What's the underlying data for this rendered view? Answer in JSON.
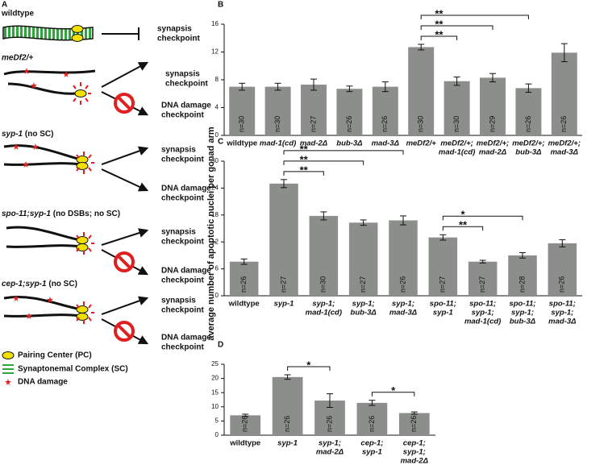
{
  "panel_a": {
    "label": "A",
    "rows": [
      {
        "genotype": "wildtype",
        "checkpoints": [
          [
            "synapsis",
            "checkpoint"
          ]
        ]
      },
      {
        "genotype": "meDf2/+",
        "checkpoints": [
          [
            "synapsis",
            "checkpoint"
          ],
          [
            "DNA damage",
            "checkpoint"
          ]
        ]
      },
      {
        "genotype": "syp-1",
        "note": "(no SC)",
        "checkpoints": [
          [
            "synapsis",
            "checkpoint"
          ],
          [
            "DNA damage",
            "checkpoint"
          ]
        ]
      },
      {
        "genotype": "spo-11;syp-1",
        "note": "(no DSBs; no SC)",
        "checkpoints": [
          [
            "synapsis",
            "checkpoint"
          ],
          [
            "DNA damage",
            "checkpoint"
          ]
        ]
      },
      {
        "genotype": "cep-1;syp-1",
        "note": "(no SC)",
        "checkpoints": [
          [
            "synapsis",
            "checkpoint"
          ],
          [
            "DNA damage",
            "checkpoint"
          ]
        ]
      }
    ],
    "legend": [
      "Pairing Center (PC)",
      "Synaptonemal Complex (SC)",
      "DNA damage"
    ]
  },
  "y_axis_label": "average number of apoptotic nuclei per gonad arm",
  "chart_data": [
    {
      "type": "bar",
      "panel": "B",
      "color": "#8b8e8b",
      "categories": [
        [
          "wildtype"
        ],
        [
          "mad-1(cd)"
        ],
        [
          "mad-2Δ"
        ],
        [
          "bub-3Δ"
        ],
        [
          "mad-3Δ"
        ],
        [
          "meDf2/+"
        ],
        [
          "meDf2/+;",
          "mad-1(cd)"
        ],
        [
          "meDf2/+;",
          "mad-2Δ"
        ],
        [
          "meDf2/+;",
          "bub-3Δ"
        ],
        [
          "meDf2/+;",
          "mad-3Δ"
        ]
      ],
      "values": [
        7.0,
        7.0,
        7.3,
        6.7,
        7.0,
        12.7,
        7.8,
        8.3,
        6.8,
        11.9
      ],
      "errors": [
        0.5,
        0.5,
        0.8,
        0.4,
        0.7,
        0.4,
        0.6,
        0.6,
        0.6,
        1.3
      ],
      "n_labels": [
        "n=30",
        "n=30",
        "n=27",
        "n=26",
        "n=26",
        "n=30",
        "n=30",
        "n=29",
        "n=26",
        "n=26"
      ],
      "ylim": [
        0,
        16
      ],
      "yticks": [
        0,
        4,
        8,
        12,
        16
      ],
      "significance": [
        {
          "from": 5,
          "to": 6,
          "label": "**"
        },
        {
          "from": 5,
          "to": 7,
          "label": "**"
        },
        {
          "from": 5,
          "to": 8,
          "label": "**"
        }
      ]
    },
    {
      "type": "bar",
      "panel": "C",
      "color": "#8b8e8b",
      "categories": [
        [
          "wildtype"
        ],
        [
          "syp-1"
        ],
        [
          "syp-1;",
          "mad-1(cd)"
        ],
        [
          "syp-1;",
          "bub-3Δ"
        ],
        [
          "syp-1;",
          "mad-3Δ"
        ],
        [
          "spo-11;",
          "syp-1"
        ],
        [
          "spo-11;",
          "syp-1;",
          "mad-1(cd)"
        ],
        [
          "spo-11;",
          "syp-1;",
          "bub-3Δ"
        ],
        [
          "spo-11;",
          "syp-1;",
          "mad-3Δ"
        ]
      ],
      "values": [
        7.6,
        25.0,
        17.8,
        16.3,
        16.8,
        13.0,
        7.6,
        9.0,
        11.7
      ],
      "errors": [
        0.6,
        0.9,
        0.9,
        0.6,
        1.0,
        0.6,
        0.3,
        0.6,
        0.8
      ],
      "n_labels": [
        "n=26",
        "n=27",
        "n=30",
        "n=27",
        "n=26",
        "n=27",
        "n=27",
        "n=28",
        "n=26"
      ],
      "ylim": [
        0,
        30
      ],
      "yticks": [
        0,
        6,
        12,
        18,
        24,
        30
      ],
      "significance": [
        {
          "from": 1,
          "to": 2,
          "label": "**"
        },
        {
          "from": 1,
          "to": 3,
          "label": "**"
        },
        {
          "from": 1,
          "to": 4,
          "label": "**"
        },
        {
          "from": 5,
          "to": 6,
          "label": "**"
        },
        {
          "from": 5,
          "to": 7,
          "label": "*"
        }
      ]
    },
    {
      "type": "bar",
      "panel": "D",
      "color": "#8b8e8b",
      "categories": [
        [
          "wildtype"
        ],
        [
          "syp-1"
        ],
        [
          "syp-1;",
          "mad-2Δ"
        ],
        [
          "cep-1;",
          "syp-1"
        ],
        [
          "cep-1;",
          "syp-1;",
          "mad-2Δ"
        ]
      ],
      "values": [
        7.0,
        20.5,
        12.2,
        11.4,
        7.8
      ],
      "errors": [
        0.4,
        0.8,
        2.4,
        0.9,
        0.4
      ],
      "n_labels": [
        "n=26",
        "n=26",
        "n=26",
        "n=26",
        "n=26"
      ],
      "ylim": [
        0,
        25
      ],
      "yticks": [
        0,
        5,
        10,
        15,
        20,
        25
      ],
      "significance": [
        {
          "from": 1,
          "to": 2,
          "label": "*"
        },
        {
          "from": 3,
          "to": 4,
          "label": "*"
        }
      ]
    }
  ]
}
